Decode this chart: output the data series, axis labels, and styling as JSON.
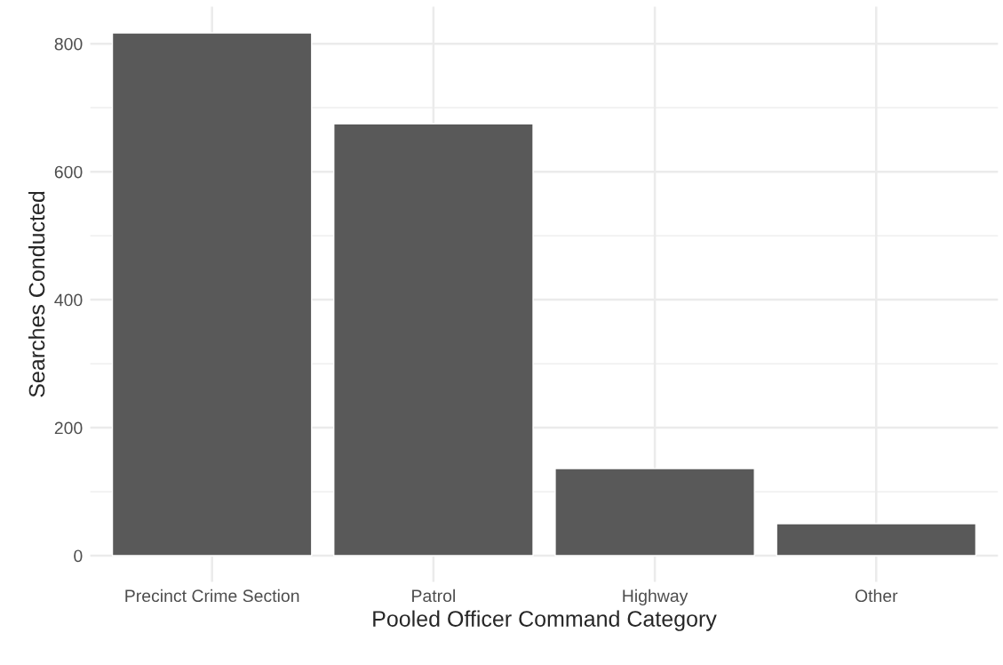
{
  "chart_data": {
    "type": "bar",
    "xlabel": "Pooled Officer Command Category",
    "ylabel": "Searches Conducted",
    "categories": [
      "Precinct Crime Section",
      "Patrol",
      "Highway",
      "Other"
    ],
    "values": [
      817,
      675,
      136,
      50
    ],
    "color": "#595959",
    "ylim": [
      -41,
      858
    ],
    "yticks": [
      0,
      200,
      400,
      600,
      800
    ],
    "grid": true
  }
}
